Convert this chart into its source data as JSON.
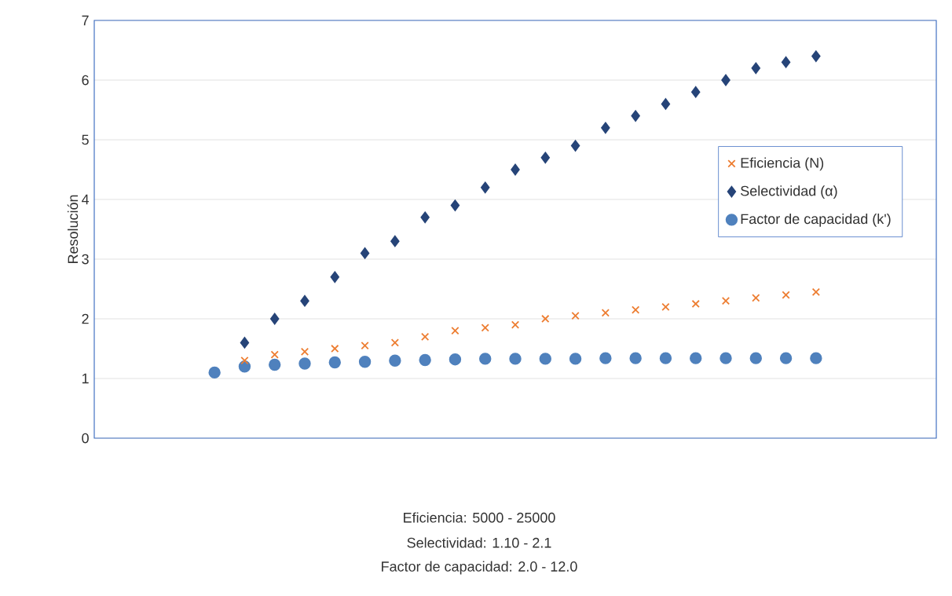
{
  "chart_data": {
    "type": "scatter",
    "ylabel": "Resolución",
    "categories": [
      null,
      null,
      null,
      null,
      null,
      null,
      null,
      null,
      null,
      null,
      null,
      null,
      null,
      null,
      null,
      null,
      null,
      null,
      null,
      null,
      null,
      null,
      null,
      null,
      null,
      null,
      null,
      null,
      null
    ],
    "series": [
      {
        "name": "Eficiencia (N)",
        "color": "#ed7d31",
        "marker": "cross",
        "values": [
          null,
          null,
          null,
          null,
          null,
          1.3,
          1.4,
          1.45,
          1.5,
          1.55,
          1.6,
          1.7,
          1.8,
          1.85,
          1.9,
          2.0,
          2.05,
          2.1,
          2.15,
          2.2,
          2.25,
          2.3,
          2.35,
          2.4,
          2.45,
          null,
          null,
          null,
          null
        ]
      },
      {
        "name": "Selectividad (α)",
        "color": "#264478",
        "marker": "diamond",
        "values": [
          null,
          null,
          null,
          null,
          null,
          1.6,
          2.0,
          2.3,
          2.7,
          3.1,
          3.3,
          3.7,
          3.9,
          4.2,
          4.5,
          4.7,
          4.9,
          5.2,
          5.4,
          5.6,
          5.8,
          6.0,
          6.2,
          6.3,
          6.4,
          null,
          null,
          null,
          null
        ]
      },
      {
        "name": "Factor de capacidad (k')",
        "color": "#4f81bd",
        "marker": "circle",
        "values": [
          null,
          null,
          null,
          null,
          1.1,
          1.2,
          1.23,
          1.25,
          1.27,
          1.28,
          1.3,
          1.31,
          1.32,
          1.33,
          1.33,
          1.33,
          1.33,
          1.34,
          1.34,
          1.34,
          1.34,
          1.34,
          1.34,
          1.34,
          1.34,
          null,
          null,
          null,
          null
        ]
      }
    ],
    "ylim": [
      0,
      7
    ],
    "yticks": [
      0,
      1,
      2,
      3,
      4,
      5,
      6,
      7
    ],
    "grid": "y",
    "legend": "right",
    "tick_labels": "y",
    "annotations": [
      "Eficiencia: 5000 - 25000",
      "Selectividad: 1.10 - 2.1",
      "Factor de capacidad: 2.0 - 12.0"
    ]
  }
}
